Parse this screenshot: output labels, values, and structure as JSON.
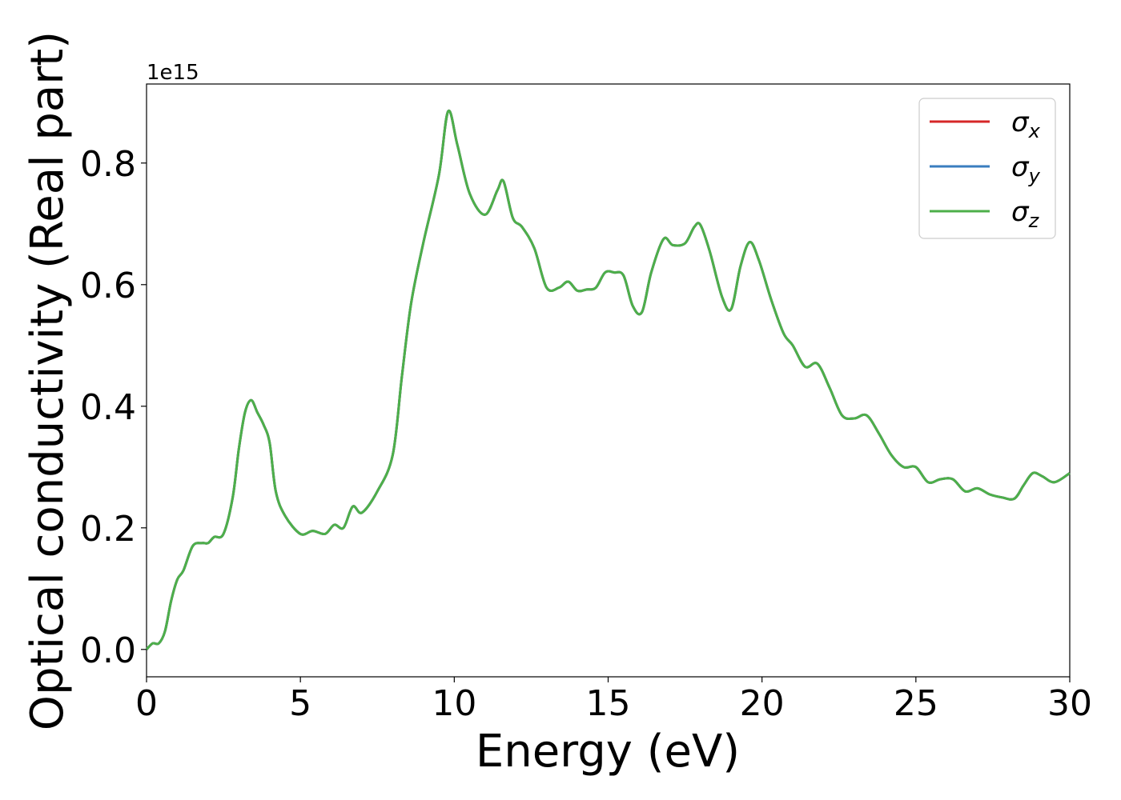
{
  "chart_data": {
    "type": "line",
    "xlabel": "Energy (eV)",
    "ylabel": "Optical conductivity (Real part)",
    "y_offset_label": "1e15",
    "xlim": [
      0,
      30
    ],
    "ylim": [
      -0.045,
      0.93
    ],
    "xticks": [
      0,
      5,
      10,
      15,
      20,
      25,
      30
    ],
    "xtick_labels": [
      "0",
      "5",
      "10",
      "15",
      "20",
      "25",
      "30"
    ],
    "yticks": [
      0.0,
      0.2,
      0.4,
      0.6,
      0.8
    ],
    "ytick_labels": [
      "0.0",
      "0.2",
      "0.4",
      "0.6",
      "0.8"
    ],
    "grid": false,
    "legend_position": "top-right",
    "series": [
      {
        "name": "σ",
        "subscript": "x",
        "color": "#d62728"
      },
      {
        "name": "σ",
        "subscript": "y",
        "color": "#3a7dbf"
      },
      {
        "name": "σ",
        "subscript": "z",
        "color": "#4daf4a"
      }
    ],
    "x": [
      0.0,
      0.2,
      0.4,
      0.6,
      0.8,
      1.0,
      1.2,
      1.5,
      1.8,
      2.0,
      2.2,
      2.5,
      2.8,
      3.0,
      3.2,
      3.4,
      3.6,
      3.8,
      4.0,
      4.2,
      4.5,
      5.0,
      5.4,
      5.8,
      6.1,
      6.4,
      6.7,
      7.0,
      7.5,
      8.0,
      8.3,
      8.6,
      9.0,
      9.5,
      9.8,
      10.1,
      10.5,
      11.0,
      11.4,
      11.6,
      11.9,
      12.2,
      12.6,
      13.0,
      13.4,
      13.7,
      14.0,
      14.3,
      14.6,
      14.9,
      15.2,
      15.5,
      15.8,
      16.1,
      16.4,
      16.8,
      17.1,
      17.5,
      17.8,
      18.0,
      18.3,
      18.7,
      19.0,
      19.3,
      19.6,
      19.9,
      20.3,
      20.7,
      21.0,
      21.4,
      21.8,
      22.2,
      22.6,
      23.0,
      23.4,
      23.8,
      24.2,
      24.6,
      25.0,
      25.4,
      25.8,
      26.2,
      26.6,
      27.0,
      27.4,
      27.8,
      28.2,
      28.5,
      28.8,
      29.1,
      29.5,
      30.0
    ],
    "values": [
      0.0,
      0.01,
      0.01,
      0.03,
      0.08,
      0.115,
      0.13,
      0.17,
      0.175,
      0.175,
      0.185,
      0.19,
      0.25,
      0.33,
      0.39,
      0.41,
      0.39,
      0.37,
      0.34,
      0.26,
      0.22,
      0.19,
      0.195,
      0.19,
      0.205,
      0.2,
      0.235,
      0.225,
      0.26,
      0.32,
      0.45,
      0.57,
      0.67,
      0.78,
      0.885,
      0.83,
      0.75,
      0.715,
      0.755,
      0.77,
      0.71,
      0.695,
      0.66,
      0.595,
      0.595,
      0.605,
      0.59,
      0.592,
      0.595,
      0.62,
      0.62,
      0.615,
      0.565,
      0.555,
      0.62,
      0.675,
      0.665,
      0.668,
      0.695,
      0.698,
      0.655,
      0.58,
      0.56,
      0.63,
      0.67,
      0.64,
      0.575,
      0.52,
      0.5,
      0.465,
      0.47,
      0.43,
      0.385,
      0.38,
      0.385,
      0.355,
      0.32,
      0.3,
      0.3,
      0.275,
      0.28,
      0.28,
      0.26,
      0.265,
      0.255,
      0.25,
      0.248,
      0.27,
      0.29,
      0.285,
      0.275,
      0.29
    ]
  }
}
